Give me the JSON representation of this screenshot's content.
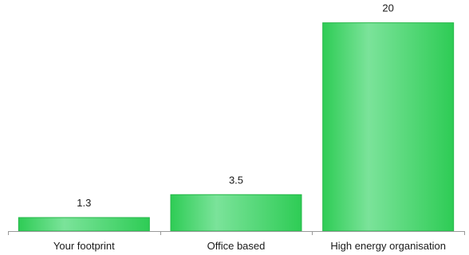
{
  "chart_data": {
    "type": "bar",
    "categories": [
      "Your footprint",
      "Office based",
      "High energy organisation"
    ],
    "values": [
      1.3,
      3.5,
      20
    ],
    "value_labels": [
      "1.3",
      "3.5",
      "20"
    ],
    "title": "",
    "xlabel": "",
    "ylabel": "",
    "ylim": [
      0,
      21.5
    ],
    "grid": false,
    "legend": "none",
    "colors": {
      "bar_edge": "#2ecc55",
      "bar_mid": "#7be39a",
      "bar_outline": "#27b84a",
      "axis": "#999999",
      "text": "#1a1a1a"
    }
  }
}
